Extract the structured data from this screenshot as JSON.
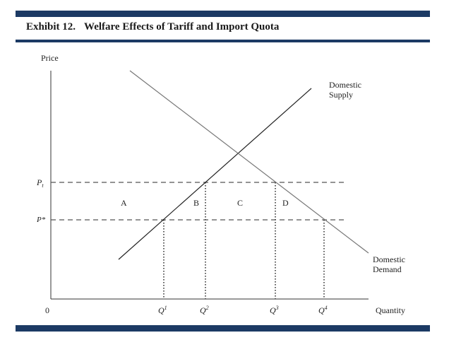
{
  "header": {
    "exhibit_number": "Exhibit 12.",
    "title": "Welfare Effects of Tariff and Import Quota",
    "accent_color": "#1c3a64"
  },
  "chart_data": {
    "type": "diagram",
    "ylabel": "Price",
    "xlabel": "Quantity",
    "origin_label": "0",
    "price_labels": {
      "pt": "P",
      "pt_sub": "t",
      "pstar": "P*"
    },
    "quantity_labels": [
      {
        "base": "Q",
        "sup": "1"
      },
      {
        "base": "Q",
        "sup": "2"
      },
      {
        "base": "Q",
        "sup": "3"
      },
      {
        "base": "Q",
        "sup": "4"
      }
    ],
    "areas": [
      "A",
      "B",
      "C",
      "D"
    ],
    "curves": {
      "supply": [
        "Domestic",
        "Supply"
      ],
      "demand": [
        "Domestic",
        "Demand"
      ]
    }
  }
}
